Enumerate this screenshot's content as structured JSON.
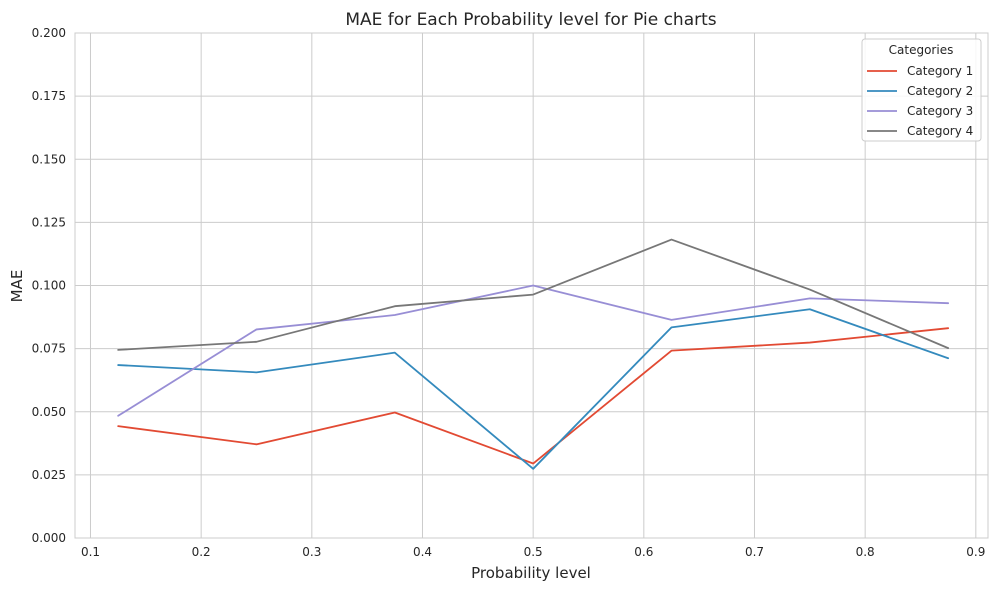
{
  "chart_data": {
    "type": "line",
    "title": "MAE for Each Probability level for Pie charts",
    "xlabel": "Probability level",
    "ylabel": "MAE",
    "xlim": [
      0.086,
      0.911
    ],
    "ylim": [
      0.0,
      0.2
    ],
    "xticks": [
      "0.1",
      "0.2",
      "0.3",
      "0.4",
      "0.5",
      "0.6",
      "0.7",
      "0.8",
      "0.9"
    ],
    "xtick_values": [
      0.1,
      0.2,
      0.3,
      0.4,
      0.5,
      0.6,
      0.7,
      0.8,
      0.9
    ],
    "yticks": [
      "0.000",
      "0.025",
      "0.050",
      "0.075",
      "0.100",
      "0.125",
      "0.150",
      "0.175",
      "0.200"
    ],
    "ytick_values": [
      0.0,
      0.025,
      0.05,
      0.075,
      0.1,
      0.125,
      0.15,
      0.175,
      0.2
    ],
    "grid": true,
    "legend": {
      "title": "Categories",
      "placement": "top-right"
    },
    "x": [
      0.125,
      0.25,
      0.375,
      0.5,
      0.625,
      0.75,
      0.875
    ],
    "series": [
      {
        "name": "Category 1",
        "color": "#e24a33",
        "values": [
          0.0443,
          0.0371,
          0.0497,
          0.0295,
          0.0742,
          0.0774,
          0.0831
        ]
      },
      {
        "name": "Category 2",
        "color": "#348abd",
        "values": [
          0.0685,
          0.0656,
          0.0734,
          0.0274,
          0.0834,
          0.0906,
          0.0712
        ]
      },
      {
        "name": "Category 3",
        "color": "#988ed5",
        "values": [
          0.0484,
          0.0826,
          0.0883,
          0.1,
          0.0864,
          0.0949,
          0.093
        ]
      },
      {
        "name": "Category 4",
        "color": "#777777",
        "values": [
          0.0745,
          0.0777,
          0.0918,
          0.0964,
          0.1182,
          0.0984,
          0.0752
        ]
      }
    ]
  }
}
